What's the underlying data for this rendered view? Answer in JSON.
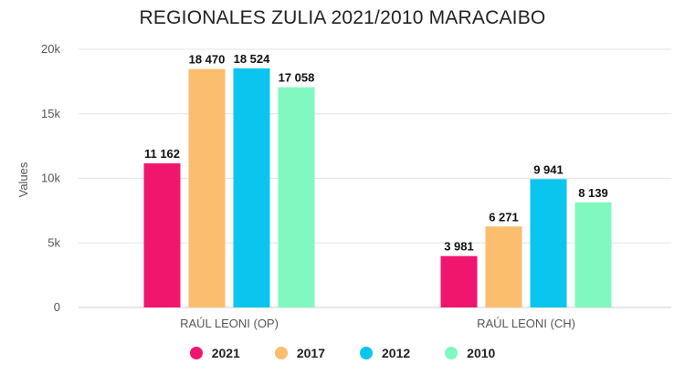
{
  "chart_data": {
    "type": "bar",
    "title": "REGIONALES ZULIA 2021/2010 MARACAIBO",
    "xlabel": "",
    "ylabel": "Values",
    "ylim": [
      0,
      20000
    ],
    "yticks": [
      {
        "value": 0,
        "label": "0"
      },
      {
        "value": 5000,
        "label": "5k"
      },
      {
        "value": 10000,
        "label": "10k"
      },
      {
        "value": 15000,
        "label": "15k"
      },
      {
        "value": 20000,
        "label": "20k"
      }
    ],
    "grid": true,
    "legend_position": "bottom",
    "categories": [
      "RAÚL LEONI (OP)",
      "RAÚL LEONI (CH)"
    ],
    "series": [
      {
        "name": "2021",
        "color": "#f0166e",
        "values": [
          11162,
          3981
        ],
        "labels": [
          "11 162",
          "3 981"
        ]
      },
      {
        "name": "2017",
        "color": "#fbbd6e",
        "values": [
          18470,
          6271
        ],
        "labels": [
          "18 470",
          "6 271"
        ]
      },
      {
        "name": "2012",
        "color": "#0bc5ee",
        "values": [
          18524,
          9941
        ],
        "labels": [
          "18 524",
          "9 941"
        ]
      },
      {
        "name": "2010",
        "color": "#80f8c0",
        "values": [
          17058,
          8139
        ],
        "labels": [
          "17 058",
          "8 139"
        ]
      }
    ]
  }
}
